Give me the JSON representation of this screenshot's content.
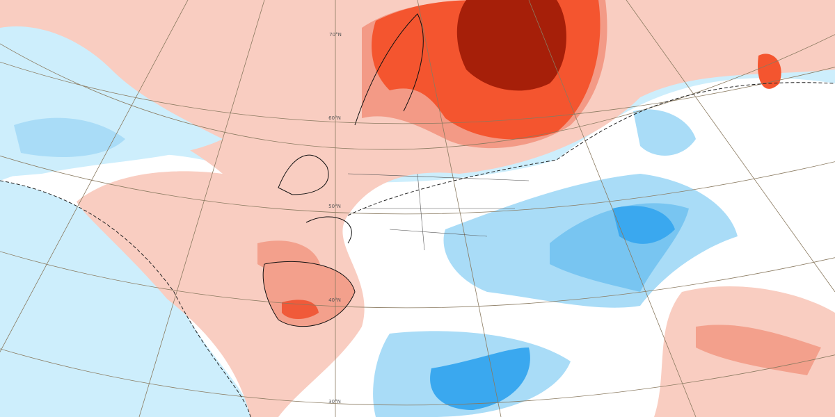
{
  "map": {
    "latitude_labels": [
      "70°N",
      "60°N",
      "50°N",
      "40°N",
      "30°N"
    ]
  }
}
